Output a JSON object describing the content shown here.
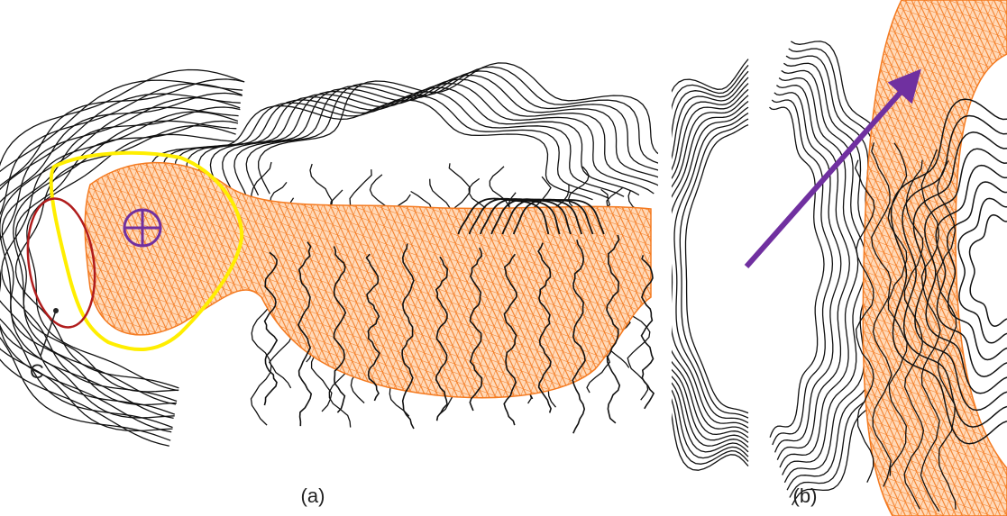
{
  "panels": [
    {
      "label": "(a)",
      "annotations": [
        "C"
      ]
    },
    {
      "label": "(b)"
    }
  ]
}
